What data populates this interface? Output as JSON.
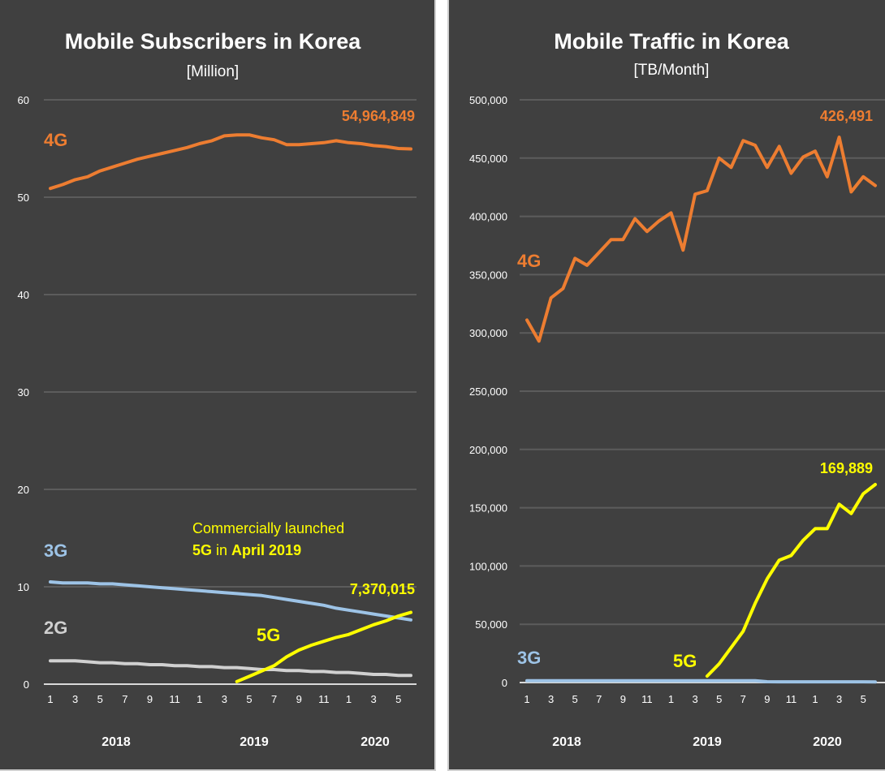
{
  "chart_data": [
    {
      "type": "line",
      "title": "Mobile Subscribers in Korea",
      "subtitle": "[Million]",
      "xlabel": "",
      "ylabel": "",
      "ylim": [
        0,
        60
      ],
      "yticks": [
        0,
        10,
        20,
        30,
        40,
        50,
        60
      ],
      "ytick_labels": [
        "0",
        "10",
        "20",
        "30",
        "40",
        "50",
        "60"
      ],
      "x_months": 30,
      "xtick_labels": [
        "1",
        "3",
        "5",
        "7",
        "9",
        "11",
        "1",
        "3",
        "5",
        "7",
        "9",
        "11",
        "1",
        "3",
        "5"
      ],
      "year_labels": [
        "2018",
        "2019",
        "2020"
      ],
      "grid": true,
      "series": [
        {
          "name": "4G",
          "color": "#ED7D31",
          "start_month": 1,
          "values": [
            50.9,
            51.3,
            51.8,
            52.1,
            52.7,
            53.1,
            53.5,
            53.9,
            54.2,
            54.5,
            54.8,
            55.1,
            55.5,
            55.8,
            56.3,
            56.4,
            56.4,
            56.1,
            55.9,
            55.4,
            55.4,
            55.5,
            55.6,
            55.8,
            55.6,
            55.5,
            55.3,
            55.2,
            55.0,
            54.96
          ]
        },
        {
          "name": "3G",
          "color": "#9DC3E6",
          "start_month": 1,
          "values": [
            10.5,
            10.4,
            10.4,
            10.4,
            10.3,
            10.3,
            10.2,
            10.1,
            10.0,
            9.9,
            9.8,
            9.7,
            9.6,
            9.5,
            9.4,
            9.3,
            9.2,
            9.1,
            8.9,
            8.7,
            8.5,
            8.3,
            8.1,
            7.8,
            7.6,
            7.4,
            7.2,
            7.0,
            6.8,
            6.6
          ]
        },
        {
          "name": "2G",
          "color": "#D0D0D0",
          "start_month": 1,
          "values": [
            2.4,
            2.4,
            2.4,
            2.3,
            2.2,
            2.2,
            2.1,
            2.1,
            2.0,
            2.0,
            1.9,
            1.9,
            1.8,
            1.8,
            1.7,
            1.7,
            1.6,
            1.5,
            1.5,
            1.4,
            1.4,
            1.3,
            1.3,
            1.2,
            1.2,
            1.1,
            1.0,
            1.0,
            0.9,
            0.9
          ]
        },
        {
          "name": "5G",
          "color": "#FFFF00",
          "start_month": 16,
          "values": [
            0.27,
            0.8,
            1.35,
            1.9,
            2.8,
            3.5,
            4.0,
            4.4,
            4.8,
            5.1,
            5.6,
            6.1,
            6.5,
            7.0,
            7.37
          ]
        }
      ],
      "annotations": {
        "value_4g": "54,964,849",
        "value_5g": "7,370,015",
        "launch_line1": "Commercially launched",
        "launch_5g": "5G",
        "launch_in": " in ",
        "launch_date": "April 2019"
      }
    },
    {
      "type": "line",
      "title": "Mobile Traffic in Korea",
      "subtitle": "[TB/Month]",
      "xlabel": "",
      "ylabel": "",
      "ylim": [
        0,
        500000
      ],
      "yticks": [
        0,
        50000,
        100000,
        150000,
        200000,
        250000,
        300000,
        350000,
        400000,
        450000,
        500000
      ],
      "ytick_labels": [
        "0",
        "50,000",
        "100,000",
        "150,000",
        "200,000",
        "250,000",
        "300,000",
        "350,000",
        "400,000",
        "450,000",
        "500,000"
      ],
      "x_months": 30,
      "xtick_labels": [
        "1",
        "3",
        "5",
        "7",
        "9",
        "11",
        "1",
        "3",
        "5",
        "7",
        "9",
        "11",
        "1",
        "3",
        "5"
      ],
      "year_labels": [
        "2018",
        "2019",
        "2020"
      ],
      "grid": true,
      "series": [
        {
          "name": "4G",
          "color": "#ED7D31",
          "start_month": 1,
          "values": [
            311000,
            293000,
            330000,
            338000,
            364000,
            358000,
            369000,
            380000,
            380000,
            398000,
            387000,
            396000,
            403000,
            371000,
            419000,
            422000,
            450000,
            442000,
            465000,
            461000,
            442000,
            460000,
            437000,
            451000,
            456000,
            434000,
            468000,
            421000,
            434000,
            426491
          ]
        },
        {
          "name": "3G",
          "color": "#9DC3E6",
          "start_month": 1,
          "values": [
            1500,
            1500,
            1500,
            1500,
            1500,
            1500,
            1500,
            1500,
            1500,
            1500,
            1500,
            1500,
            1500,
            1500,
            1500,
            1500,
            1500,
            1500,
            1500,
            1500,
            700,
            600,
            600,
            600,
            600,
            600,
            600,
            600,
            600,
            500
          ]
        },
        {
          "name": "5G",
          "color": "#FFFF00",
          "start_month": 16,
          "values": [
            5500,
            16000,
            30000,
            44000,
            68000,
            89000,
            105000,
            109000,
            122000,
            132000,
            132000,
            153000,
            145000,
            162000,
            169889
          ]
        }
      ],
      "annotations": {
        "value_4g": "426,491",
        "value_5g": "169,889"
      }
    }
  ]
}
